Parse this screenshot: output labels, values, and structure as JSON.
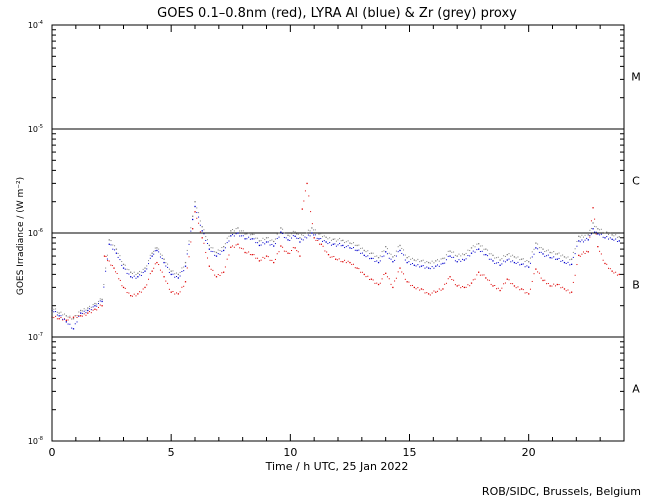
{
  "chart_data": {
    "type": "scatter",
    "title": "GOES 0.1–0.8nm (red), LYRA Al (blue) & Zr (grey) proxy",
    "xlabel": "Time / h UTC, 25 Jan 2022",
    "ylabel": "GOES Irradiance / (W m⁻²)",
    "footer": "ROB/SIDC, Brussels, Belgium",
    "xlim": [
      0,
      24
    ],
    "ylim": [
      1e-08,
      0.0001
    ],
    "yscale": "log",
    "x_ticks": [
      {
        "value": 0,
        "label": "0"
      },
      {
        "value": 5,
        "label": "5"
      },
      {
        "value": 10,
        "label": "10"
      },
      {
        "value": 15,
        "label": "15"
      },
      {
        "value": 20,
        "label": "20"
      }
    ],
    "y_ticks": [
      {
        "value": 1e-08,
        "base": "10",
        "exp": "-8"
      },
      {
        "value": 1e-07,
        "base": "10",
        "exp": "-7"
      },
      {
        "value": 1e-06,
        "base": "10",
        "exp": "-6"
      },
      {
        "value": 1e-05,
        "base": "10",
        "exp": "-5"
      },
      {
        "value": 0.0001,
        "base": "10",
        "exp": "-4"
      }
    ],
    "flare_class_lines": [
      1e-07,
      1e-06,
      1e-05
    ],
    "flare_classes": [
      {
        "label": "M",
        "y": 3.2e-05
      },
      {
        "label": "C",
        "y": 3.2e-06
      },
      {
        "label": "B",
        "y": 3.2e-07
      },
      {
        "label": "A",
        "y": 3.2e-08
      }
    ],
    "colors": {
      "red": "#dd0000",
      "blue": "#0000cc",
      "grey": "#808080"
    },
    "series": [
      {
        "color": "red",
        "points": [
          [
            0.0,
            1.55e-07
          ],
          [
            0.3,
            1.5e-07
          ],
          [
            0.6,
            1.45e-07
          ],
          [
            0.9,
            1.55e-07
          ],
          [
            1.2,
            1.6e-07
          ],
          [
            1.5,
            1.7e-07
          ],
          [
            1.8,
            1.85e-07
          ],
          [
            2.1,
            2e-07
          ],
          [
            2.2,
            6e-07
          ],
          [
            2.6,
            4.6e-07
          ],
          [
            3.0,
            3e-07
          ],
          [
            3.3,
            2.5e-07
          ],
          [
            3.6,
            2.6e-07
          ],
          [
            3.9,
            3e-07
          ],
          [
            4.2,
            4.3e-07
          ],
          [
            4.4,
            5.2e-07
          ],
          [
            4.7,
            3.8e-07
          ],
          [
            5.0,
            2.7e-07
          ],
          [
            5.3,
            2.6e-07
          ],
          [
            5.6,
            3.4e-07
          ],
          [
            5.9,
            1.1e-06
          ],
          [
            6.0,
            1.6e-06
          ],
          [
            6.3,
            9e-07
          ],
          [
            6.6,
            4.8e-07
          ],
          [
            6.9,
            3.8e-07
          ],
          [
            7.2,
            4.2e-07
          ],
          [
            7.5,
            7.3e-07
          ],
          [
            7.8,
            7.8e-07
          ],
          [
            8.1,
            6.5e-07
          ],
          [
            8.4,
            6.2e-07
          ],
          [
            8.7,
            5.4e-07
          ],
          [
            9.0,
            6e-07
          ],
          [
            9.3,
            5.2e-07
          ],
          [
            9.6,
            7.5e-07
          ],
          [
            9.9,
            6.4e-07
          ],
          [
            10.2,
            7.2e-07
          ],
          [
            10.4,
            6e-07
          ],
          [
            10.5,
            1.7e-06
          ],
          [
            10.7,
            3e-06
          ],
          [
            11.0,
            9e-07
          ],
          [
            11.3,
            7.8e-07
          ],
          [
            11.6,
            6.2e-07
          ],
          [
            11.9,
            5.6e-07
          ],
          [
            12.2,
            5.3e-07
          ],
          [
            12.5,
            5.2e-07
          ],
          [
            12.8,
            4.6e-07
          ],
          [
            13.1,
            4e-07
          ],
          [
            13.4,
            3.6e-07
          ],
          [
            13.7,
            3.2e-07
          ],
          [
            14.0,
            4.1e-07
          ],
          [
            14.3,
            3e-07
          ],
          [
            14.6,
            4.6e-07
          ],
          [
            14.9,
            3.4e-07
          ],
          [
            15.2,
            3e-07
          ],
          [
            15.5,
            2.9e-07
          ],
          [
            15.8,
            2.6e-07
          ],
          [
            16.1,
            2.7e-07
          ],
          [
            16.4,
            2.9e-07
          ],
          [
            16.7,
            3.8e-07
          ],
          [
            17.0,
            3.1e-07
          ],
          [
            17.3,
            3e-07
          ],
          [
            17.6,
            3.3e-07
          ],
          [
            17.9,
            4.2e-07
          ],
          [
            18.2,
            3.7e-07
          ],
          [
            18.5,
            3.1e-07
          ],
          [
            18.8,
            2.8e-07
          ],
          [
            19.1,
            3.6e-07
          ],
          [
            19.4,
            3.1e-07
          ],
          [
            19.7,
            2.9e-07
          ],
          [
            20.0,
            2.6e-07
          ],
          [
            20.3,
            4.5e-07
          ],
          [
            20.6,
            3.5e-07
          ],
          [
            20.9,
            3.1e-07
          ],
          [
            21.2,
            3.2e-07
          ],
          [
            21.5,
            2.9e-07
          ],
          [
            21.8,
            2.7e-07
          ],
          [
            22.1,
            6.1e-07
          ],
          [
            22.5,
            6.6e-07
          ],
          [
            22.7,
            1.75e-06
          ],
          [
            22.9,
            7.4e-07
          ],
          [
            23.2,
            5.1e-07
          ],
          [
            23.5,
            4.3e-07
          ],
          [
            23.8,
            4e-07
          ]
        ]
      },
      {
        "color": "blue",
        "points": [
          [
            0.0,
            1.8e-07
          ],
          [
            0.3,
            1.6e-07
          ],
          [
            0.6,
            1.4e-07
          ],
          [
            0.9,
            1.2e-07
          ],
          [
            1.2,
            1.7e-07
          ],
          [
            1.5,
            1.8e-07
          ],
          [
            1.8,
            2e-07
          ],
          [
            2.1,
            2.2e-07
          ],
          [
            2.4,
            7.8e-07
          ],
          [
            2.7,
            6.4e-07
          ],
          [
            3.0,
            4.6e-07
          ],
          [
            3.3,
            3.8e-07
          ],
          [
            3.6,
            3.8e-07
          ],
          [
            3.9,
            4.3e-07
          ],
          [
            4.2,
            6e-07
          ],
          [
            4.4,
            6.8e-07
          ],
          [
            4.7,
            5.2e-07
          ],
          [
            5.0,
            4e-07
          ],
          [
            5.3,
            3.7e-07
          ],
          [
            5.6,
            4.8e-07
          ],
          [
            5.9,
            1.35e-06
          ],
          [
            6.0,
            1.8e-06
          ],
          [
            6.3,
            1.05e-06
          ],
          [
            6.6,
            7e-07
          ],
          [
            6.9,
            6e-07
          ],
          [
            7.2,
            6.8e-07
          ],
          [
            7.5,
            9.4e-07
          ],
          [
            7.8,
            1e-06
          ],
          [
            8.1,
            8.8e-07
          ],
          [
            8.4,
            8.8e-07
          ],
          [
            8.7,
            7.6e-07
          ],
          [
            9.0,
            8.2e-07
          ],
          [
            9.3,
            7.5e-07
          ],
          [
            9.6,
            1.02e-06
          ],
          [
            9.9,
            8.6e-07
          ],
          [
            10.2,
            9.3e-07
          ],
          [
            10.4,
            8.2e-07
          ],
          [
            10.9,
            1e-06
          ],
          [
            11.2,
            8.8e-07
          ],
          [
            11.5,
            8.2e-07
          ],
          [
            11.8,
            7.8e-07
          ],
          [
            12.2,
            7.6e-07
          ],
          [
            12.5,
            7.2e-07
          ],
          [
            12.8,
            6.8e-07
          ],
          [
            13.1,
            6.1e-07
          ],
          [
            13.4,
            5.7e-07
          ],
          [
            13.7,
            5.2e-07
          ],
          [
            14.0,
            6.6e-07
          ],
          [
            14.3,
            5.3e-07
          ],
          [
            14.6,
            6.8e-07
          ],
          [
            14.9,
            5.2e-07
          ],
          [
            15.2,
            4.9e-07
          ],
          [
            15.5,
            4.8e-07
          ],
          [
            15.8,
            4.6e-07
          ],
          [
            16.1,
            4.8e-07
          ],
          [
            16.4,
            5.1e-07
          ],
          [
            16.7,
            6e-07
          ],
          [
            17.0,
            5.3e-07
          ],
          [
            17.3,
            5.5e-07
          ],
          [
            17.6,
            6.4e-07
          ],
          [
            17.9,
            7e-07
          ],
          [
            18.2,
            6.2e-07
          ],
          [
            18.5,
            5.4e-07
          ],
          [
            18.8,
            4.9e-07
          ],
          [
            19.1,
            5.5e-07
          ],
          [
            19.4,
            5.2e-07
          ],
          [
            19.7,
            5e-07
          ],
          [
            20.0,
            4.7e-07
          ],
          [
            20.3,
            7.2e-07
          ],
          [
            20.6,
            6.3e-07
          ],
          [
            20.9,
            5.8e-07
          ],
          [
            21.2,
            5.6e-07
          ],
          [
            21.5,
            5.2e-07
          ],
          [
            21.8,
            5e-07
          ],
          [
            22.1,
            8.4e-07
          ],
          [
            22.5,
            8.6e-07
          ],
          [
            22.7,
            1.1e-06
          ],
          [
            22.9,
            9.8e-07
          ],
          [
            23.2,
            9e-07
          ],
          [
            23.5,
            8.7e-07
          ],
          [
            23.8,
            8.4e-07
          ]
        ]
      },
      {
        "color": "grey",
        "points": [
          [
            0.0,
            1.9e-07
          ],
          [
            0.3,
            1.7e-07
          ],
          [
            0.6,
            1.6e-07
          ],
          [
            0.9,
            1.5e-07
          ],
          [
            1.2,
            1.8e-07
          ],
          [
            1.5,
            1.9e-07
          ],
          [
            1.8,
            2.1e-07
          ],
          [
            2.1,
            2.3e-07
          ],
          [
            2.4,
            8.6e-07
          ],
          [
            2.7,
            7e-07
          ],
          [
            3.0,
            5e-07
          ],
          [
            3.3,
            4.2e-07
          ],
          [
            3.6,
            4.1e-07
          ],
          [
            3.9,
            4.6e-07
          ],
          [
            4.2,
            6.4e-07
          ],
          [
            4.4,
            7.2e-07
          ],
          [
            4.7,
            5.6e-07
          ],
          [
            5.0,
            4.3e-07
          ],
          [
            5.3,
            4e-07
          ],
          [
            5.6,
            5.2e-07
          ],
          [
            5.9,
            1.45e-06
          ],
          [
            6.0,
            2e-06
          ],
          [
            6.3,
            1.15e-06
          ],
          [
            6.6,
            7.6e-07
          ],
          [
            6.9,
            6.5e-07
          ],
          [
            7.2,
            7.4e-07
          ],
          [
            7.5,
            1.05e-06
          ],
          [
            7.8,
            1.12e-06
          ],
          [
            8.1,
            9.8e-07
          ],
          [
            8.4,
            9.7e-07
          ],
          [
            8.7,
            8.4e-07
          ],
          [
            9.0,
            9e-07
          ],
          [
            9.3,
            8.3e-07
          ],
          [
            9.6,
            1.12e-06
          ],
          [
            9.9,
            9.5e-07
          ],
          [
            10.2,
            1.02e-06
          ],
          [
            10.4,
            9e-07
          ],
          [
            10.9,
            1.12e-06
          ],
          [
            11.2,
            9.8e-07
          ],
          [
            11.5,
            9.1e-07
          ],
          [
            11.8,
            8.7e-07
          ],
          [
            12.2,
            8.5e-07
          ],
          [
            12.5,
            8e-07
          ],
          [
            12.8,
            7.6e-07
          ],
          [
            13.1,
            6.8e-07
          ],
          [
            13.4,
            6.4e-07
          ],
          [
            13.7,
            5.8e-07
          ],
          [
            14.0,
            7.4e-07
          ],
          [
            14.3,
            5.9e-07
          ],
          [
            14.6,
            7.6e-07
          ],
          [
            14.9,
            5.8e-07
          ],
          [
            15.2,
            5.5e-07
          ],
          [
            15.5,
            5.4e-07
          ],
          [
            15.8,
            5.2e-07
          ],
          [
            16.1,
            5.4e-07
          ],
          [
            16.4,
            5.7e-07
          ],
          [
            16.7,
            6.7e-07
          ],
          [
            17.0,
            6e-07
          ],
          [
            17.3,
            6.2e-07
          ],
          [
            17.6,
            7.2e-07
          ],
          [
            17.9,
            7.9e-07
          ],
          [
            18.2,
            7e-07
          ],
          [
            18.5,
            6.1e-07
          ],
          [
            18.8,
            5.5e-07
          ],
          [
            19.1,
            6.2e-07
          ],
          [
            19.4,
            5.9e-07
          ],
          [
            19.7,
            5.6e-07
          ],
          [
            20.0,
            5.3e-07
          ],
          [
            20.3,
            8e-07
          ],
          [
            20.6,
            7e-07
          ],
          [
            20.9,
            6.5e-07
          ],
          [
            21.2,
            6.3e-07
          ],
          [
            21.5,
            5.9e-07
          ],
          [
            21.8,
            5.6e-07
          ],
          [
            22.1,
            9.3e-07
          ],
          [
            22.5,
            9.6e-07
          ],
          [
            22.7,
            1.25e-06
          ],
          [
            22.9,
            1.1e-06
          ],
          [
            23.2,
            1e-06
          ],
          [
            23.5,
            9.6e-07
          ],
          [
            23.8,
            9.2e-07
          ]
        ]
      }
    ]
  }
}
